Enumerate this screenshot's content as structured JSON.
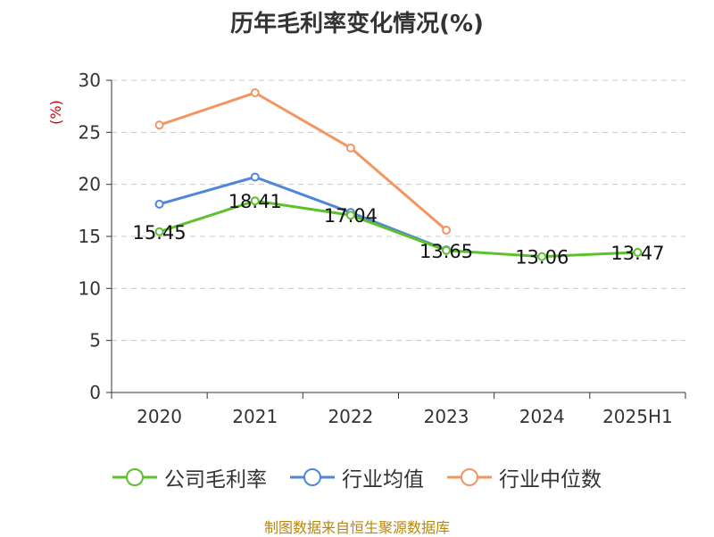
{
  "chart_data": {
    "type": "line",
    "title": "历年毛利率变化情况(%)",
    "ylabel": "(%)",
    "categories": [
      "2020",
      "2021",
      "2022",
      "2023",
      "2024",
      "2025H1"
    ],
    "ylim": [
      0,
      30
    ],
    "yticks": [
      0,
      5,
      10,
      15,
      20,
      25,
      30
    ],
    "grid": true,
    "legend_position": "bottom",
    "series": [
      {
        "name": "公司毛利率",
        "color": "#5cc12a",
        "values": [
          15.45,
          18.41,
          17.04,
          13.65,
          13.06,
          13.47
        ],
        "labels": [
          "15.45",
          "18.41",
          "17.04",
          "13.65",
          "13.06",
          "13.47"
        ]
      },
      {
        "name": "行业均值",
        "color": "#4f86d9",
        "values": [
          18.1,
          20.7,
          17.3,
          13.7,
          null,
          null
        ]
      },
      {
        "name": "行业中位数",
        "color": "#f39561",
        "values": [
          25.7,
          28.8,
          23.5,
          15.6,
          null,
          null
        ]
      }
    ]
  },
  "source": "制图数据来自恒生聚源数据库"
}
